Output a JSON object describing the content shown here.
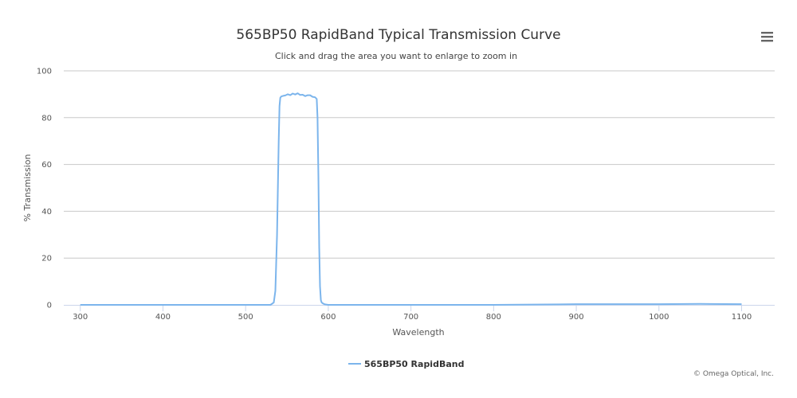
{
  "chart_data": {
    "type": "line",
    "title": "565BP50 RapidBand Typical Transmission Curve",
    "subtitle": "Click and drag the area you want to enlarge to zoom in",
    "xlabel": "Wavelength",
    "ylabel": "% Transmission",
    "xlim": [
      280,
      1140
    ],
    "ylim": [
      0,
      100
    ],
    "x_ticks": [
      300,
      400,
      500,
      600,
      700,
      800,
      900,
      1000,
      1100
    ],
    "y_ticks": [
      0,
      20,
      40,
      60,
      80,
      100
    ],
    "grid": "horizontal",
    "legend_position": "bottom-center",
    "series": [
      {
        "name": "565BP50 RapidBand",
        "color": "#7cb5ec",
        "x": [
          300,
          400,
          500,
          530,
          534,
          536,
          538,
          540,
          541,
          542,
          543,
          545,
          548,
          551,
          554,
          557,
          560,
          563,
          566,
          569,
          572,
          575,
          578,
          581,
          584,
          586,
          587,
          588,
          589,
          590,
          591,
          592,
          594,
          596,
          600,
          650,
          700,
          800,
          880,
          900,
          950,
          1000,
          1050,
          1100
        ],
        "y": [
          0,
          0,
          0,
          0,
          1,
          6,
          30,
          70,
          85,
          88.5,
          89,
          89.3,
          89.5,
          90,
          89.6,
          90.3,
          89.9,
          90.4,
          89.7,
          89.8,
          89.2,
          89.6,
          89.6,
          88.9,
          88.7,
          88,
          80,
          55,
          25,
          8,
          2,
          1,
          0.5,
          0.2,
          0,
          0,
          0,
          0,
          0.2,
          0.3,
          0.3,
          0.3,
          0.4,
          0.3
        ]
      }
    ]
  },
  "menu": {
    "icon": "hamburger-menu-icon"
  },
  "credits": "© Omega Optical, Inc."
}
